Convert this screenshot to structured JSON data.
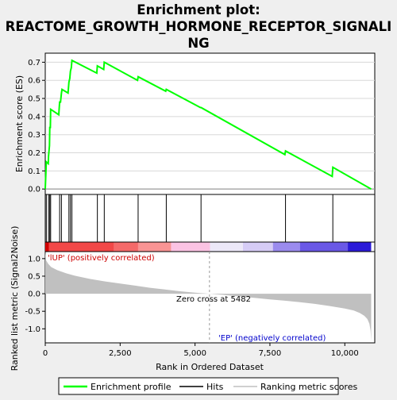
{
  "chart_data": {
    "type": "line",
    "title": "Enrichment plot: REACTOME_GROWTH_HORMONE_RECEPTOR_SIGNALING",
    "title_lines": [
      "Enrichment plot:",
      "REACTOME_GROWTH_HORMONE_RECEPTOR_SIGNALI",
      "NG"
    ],
    "xlabel": "Rank in Ordered Dataset",
    "xlim": [
      0,
      11000
    ],
    "x_ticks": [
      0,
      2500,
      5000,
      7500,
      10000
    ],
    "x_tick_labels": [
      "0",
      "2,500",
      "5,000",
      "7,500",
      "10,000"
    ],
    "panels": {
      "enrichment": {
        "ylabel": "Enrichment score (ES)",
        "ylim": [
          -0.03,
          0.75
        ],
        "y_ticks": [
          0.0,
          0.1,
          0.2,
          0.3,
          0.4,
          0.5,
          0.6,
          0.7
        ],
        "y_tick_labels": [
          "0.0",
          "0.1",
          "0.2",
          "0.3",
          "0.4",
          "0.5",
          "0.6",
          "0.7"
        ],
        "grid": true,
        "series": [
          {
            "name": "Enrichment profile",
            "color": "#00ff00",
            "x": [
              0,
              35,
              100,
              110,
              140,
              150,
              170,
              180,
              450,
              480,
              510,
              540,
              560,
              760,
              790,
              820,
              840,
              870,
              890,
              1720,
              1740,
              1950,
              1970,
              3080,
              3100,
              4020,
              4040,
              5180,
              5200,
              8000,
              8020,
              9580,
              9600,
              10880
            ],
            "y": [
              0.0,
              0.15,
              0.14,
              0.18,
              0.24,
              0.34,
              0.34,
              0.44,
              0.41,
              0.48,
              0.48,
              0.53,
              0.55,
              0.53,
              0.59,
              0.61,
              0.65,
              0.67,
              0.71,
              0.64,
              0.68,
              0.66,
              0.7,
              0.6,
              0.62,
              0.54,
              0.55,
              0.45,
              0.45,
              0.19,
              0.21,
              0.07,
              0.12,
              0.0
            ]
          }
        ]
      },
      "hits": {
        "name": "Hits",
        "positions": [
          35,
          110,
          150,
          180,
          480,
          540,
          790,
          840,
          890,
          1740,
          1970,
          3100,
          4040,
          5200,
          8020,
          9600
        ]
      },
      "ranked_list": {
        "ylabel": "Ranked list metric (Signal2Noise)",
        "ylim": [
          -1.4,
          1.2
        ],
        "y_ticks": [
          1.0,
          0.5,
          0.0,
          -0.5,
          -1.0
        ],
        "y_tick_labels": [
          "1.0",
          "0.5",
          "0.0",
          "-0.5",
          "-1.0"
        ],
        "series": [
          {
            "name": "Ranking metric scores",
            "color": "#c0c0c0",
            "x": [
              0,
              30,
              100,
              200,
              400,
              700,
              1000,
              1500,
              2000,
              2500,
              3000,
              3500,
              4000,
              4500,
              5000,
              5482,
              6000,
              6500,
              7000,
              7500,
              8000,
              8500,
              9000,
              9500,
              10000,
              10300,
              10500,
              10650,
              10750,
              10820,
              10860,
              10880
            ],
            "y": [
              1.2,
              0.95,
              0.85,
              0.76,
              0.67,
              0.58,
              0.51,
              0.42,
              0.35,
              0.29,
              0.23,
              0.17,
              0.12,
              0.07,
              0.03,
              0.0,
              -0.04,
              -0.08,
              -0.12,
              -0.16,
              -0.2,
              -0.24,
              -0.29,
              -0.35,
              -0.42,
              -0.48,
              -0.55,
              -0.63,
              -0.72,
              -0.85,
              -1.05,
              -1.35
            ]
          }
        ],
        "annotations": {
          "up": "'lUP' (positively correlated)",
          "zero_cross": "Zero cross at 5482",
          "down": "'EP' (negatively correlated)"
        },
        "zero_cross_x": 5482
      },
      "color_bar": {
        "segments": [
          {
            "x0": 0,
            "x1": 120,
            "color": "#d00000"
          },
          {
            "x0": 120,
            "x1": 2300,
            "color": "#f24848"
          },
          {
            "x0": 2300,
            "x1": 3100,
            "color": "#f56a6a"
          },
          {
            "x0": 3100,
            "x1": 4200,
            "color": "#f99494"
          },
          {
            "x0": 4200,
            "x1": 5500,
            "color": "#fbc3e3"
          },
          {
            "x0": 5500,
            "x1": 6600,
            "color": "#ece8f8"
          },
          {
            "x0": 6600,
            "x1": 7600,
            "color": "#d6ccf6"
          },
          {
            "x0": 7600,
            "x1": 8500,
            "color": "#9b8bee"
          },
          {
            "x0": 8500,
            "x1": 10100,
            "color": "#6a58e6"
          },
          {
            "x0": 10100,
            "x1": 10880,
            "color": "#2b1ad8"
          }
        ]
      }
    },
    "legend": {
      "placement": "bottom",
      "entries": [
        {
          "label": "Enrichment profile",
          "color": "#00ff00",
          "kind": "line"
        },
        {
          "label": "Hits",
          "color": "#000000",
          "kind": "line"
        },
        {
          "label": "Ranking metric scores",
          "color": "#c0c0c0",
          "kind": "line"
        }
      ]
    }
  }
}
